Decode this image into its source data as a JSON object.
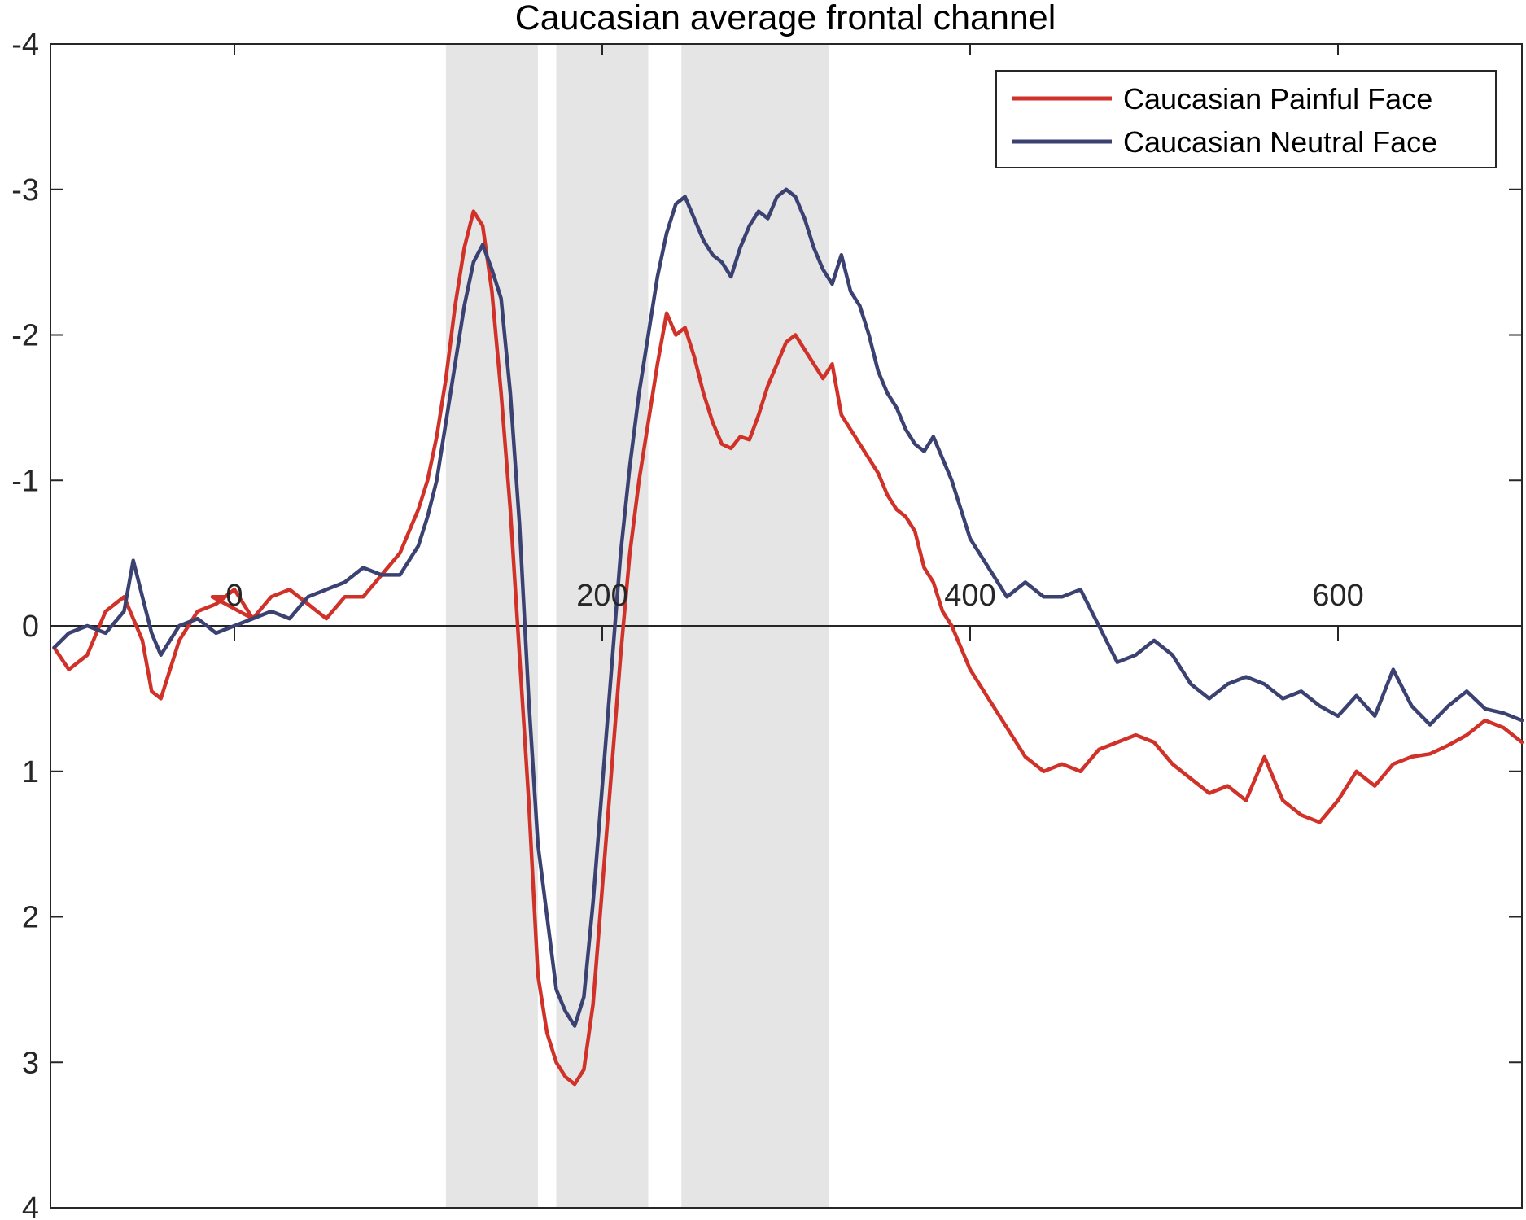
{
  "chart_data": {
    "type": "line",
    "title": "Caucasian average frontal channel",
    "xlabel": "",
    "ylabel": "",
    "xlim": [
      -100,
      700
    ],
    "ylim": [
      -4,
      4
    ],
    "y_reversed": true,
    "x_axis_through_zero": true,
    "grid": false,
    "legend_position": "top-right",
    "xticks": [
      0,
      200,
      400,
      600
    ],
    "xtick_labels": [
      "0",
      "200",
      "400",
      "600"
    ],
    "yticks": [
      -4,
      -3,
      -2,
      -1,
      0,
      1,
      2,
      3,
      4
    ],
    "ytick_labels": [
      "-4",
      "-3",
      "-2",
      "-1",
      "0",
      "1",
      "2",
      "3",
      "4"
    ],
    "shaded_intervals": [
      {
        "x": [
          115,
          165
        ]
      },
      {
        "x": [
          175,
          225
        ]
      },
      {
        "x": [
          243,
          323
        ]
      }
    ],
    "series": [
      {
        "name": "Caucasian Painful Face",
        "color": "#d03128",
        "x": [
          -98,
          -90,
          -80,
          -70,
          -60,
          -50,
          -45,
          -40,
          -30,
          -20,
          -10,
          0,
          10,
          -12,
          -5,
          0,
          10,
          20,
          30,
          40,
          50,
          60,
          70,
          80,
          90,
          100,
          105,
          110,
          115,
          120,
          125,
          130,
          135,
          140,
          145,
          150,
          155,
          160,
          165,
          170,
          175,
          180,
          185,
          190,
          195,
          200,
          205,
          210,
          215,
          220,
          225,
          230,
          235,
          240,
          245,
          250,
          255,
          260,
          265,
          270,
          275,
          280,
          285,
          290,
          295,
          300,
          305,
          310,
          315,
          320,
          325,
          330,
          335,
          340,
          345,
          350,
          355,
          360,
          365,
          370,
          375,
          380,
          385,
          390,
          395,
          400,
          410,
          420,
          430,
          440,
          450,
          460,
          470,
          480,
          490,
          500,
          510,
          520,
          530,
          540,
          550,
          560,
          570,
          580,
          590,
          600,
          610,
          620,
          630,
          640,
          650,
          660,
          670,
          680,
          690,
          700
        ],
        "y": [
          0.15,
          0.3,
          0.2,
          -0.1,
          -0.2,
          0.1,
          0.45,
          0.5,
          0.1,
          -0.1,
          -0.15,
          -0.25,
          -0.05,
          -0.2,
          -0.2,
          -0.25,
          -0.05,
          -0.2,
          -0.25,
          -0.15,
          -0.05,
          -0.2,
          -0.2,
          -0.35,
          -0.5,
          -0.8,
          -1.0,
          -1.3,
          -1.7,
          -2.2,
          -2.6,
          -2.85,
          -2.75,
          -2.3,
          -1.6,
          -0.8,
          0.2,
          1.2,
          2.4,
          2.8,
          3.0,
          3.1,
          3.15,
          3.05,
          2.6,
          1.8,
          1.0,
          0.2,
          -0.5,
          -1.0,
          -1.4,
          -1.8,
          -2.15,
          -2.0,
          -2.05,
          -1.85,
          -1.6,
          -1.4,
          -1.25,
          -1.22,
          -1.3,
          -1.28,
          -1.45,
          -1.65,
          -1.8,
          -1.95,
          -2.0,
          -1.9,
          -1.8,
          -1.7,
          -1.8,
          -1.45,
          -1.35,
          -1.25,
          -1.15,
          -1.05,
          -0.9,
          -0.8,
          -0.75,
          -0.65,
          -0.4,
          -0.3,
          -0.1,
          0.0,
          0.15,
          0.3,
          0.5,
          0.7,
          0.9,
          1.0,
          0.95,
          1.0,
          0.85,
          0.8,
          0.75,
          0.8,
          0.95,
          1.05,
          1.15,
          1.1,
          1.2,
          0.9,
          1.2,
          1.3,
          1.35,
          1.2,
          1.0,
          1.1,
          0.95,
          0.9,
          0.88,
          0.82,
          0.75,
          0.65,
          0.7,
          0.8
        ]
      },
      {
        "name": "Caucasian Neutral Face",
        "color": "#3b4272",
        "x": [
          -98,
          -90,
          -80,
          -70,
          -60,
          -55,
          -50,
          -45,
          -40,
          -30,
          -20,
          -10,
          0,
          10,
          20,
          30,
          40,
          50,
          60,
          70,
          80,
          90,
          100,
          105,
          110,
          115,
          120,
          125,
          130,
          135,
          140,
          145,
          150,
          155,
          160,
          165,
          170,
          175,
          180,
          185,
          190,
          195,
          200,
          205,
          210,
          215,
          220,
          225,
          230,
          235,
          240,
          245,
          250,
          255,
          260,
          265,
          270,
          275,
          280,
          285,
          290,
          295,
          300,
          305,
          310,
          315,
          320,
          325,
          330,
          335,
          340,
          345,
          350,
          355,
          360,
          365,
          370,
          375,
          380,
          385,
          390,
          395,
          400,
          410,
          420,
          430,
          440,
          450,
          460,
          470,
          480,
          490,
          500,
          510,
          520,
          530,
          540,
          550,
          560,
          570,
          580,
          590,
          600,
          610,
          620,
          630,
          640,
          650,
          660,
          670,
          680,
          690,
          700
        ],
        "y": [
          0.15,
          0.05,
          0.0,
          0.05,
          -0.1,
          -0.45,
          -0.2,
          0.05,
          0.2,
          0.0,
          -0.05,
          0.05,
          0.0,
          -0.05,
          -0.1,
          -0.05,
          -0.2,
          -0.25,
          -0.3,
          -0.4,
          -0.35,
          -0.35,
          -0.55,
          -0.75,
          -1.0,
          -1.4,
          -1.8,
          -2.2,
          -2.5,
          -2.62,
          -2.45,
          -2.25,
          -1.6,
          -0.7,
          0.5,
          1.5,
          2.0,
          2.5,
          2.65,
          2.75,
          2.55,
          1.9,
          1.1,
          0.3,
          -0.5,
          -1.1,
          -1.6,
          -2.0,
          -2.4,
          -2.7,
          -2.9,
          -2.95,
          -2.8,
          -2.65,
          -2.55,
          -2.5,
          -2.4,
          -2.6,
          -2.75,
          -2.85,
          -2.8,
          -2.95,
          -3.0,
          -2.95,
          -2.8,
          -2.6,
          -2.45,
          -2.35,
          -2.55,
          -2.3,
          -2.2,
          -2.0,
          -1.75,
          -1.6,
          -1.5,
          -1.35,
          -1.25,
          -1.2,
          -1.3,
          -1.15,
          -1.0,
          -0.8,
          -0.6,
          -0.4,
          -0.2,
          -0.3,
          -0.2,
          -0.2,
          -0.25,
          0.0,
          0.25,
          0.2,
          0.1,
          0.2,
          0.4,
          0.5,
          0.4,
          0.35,
          0.4,
          0.5,
          0.45,
          0.55,
          0.62,
          0.48,
          0.62,
          0.3,
          0.55,
          0.68,
          0.55,
          0.45,
          0.57,
          0.6,
          0.65
        ]
      }
    ]
  }
}
